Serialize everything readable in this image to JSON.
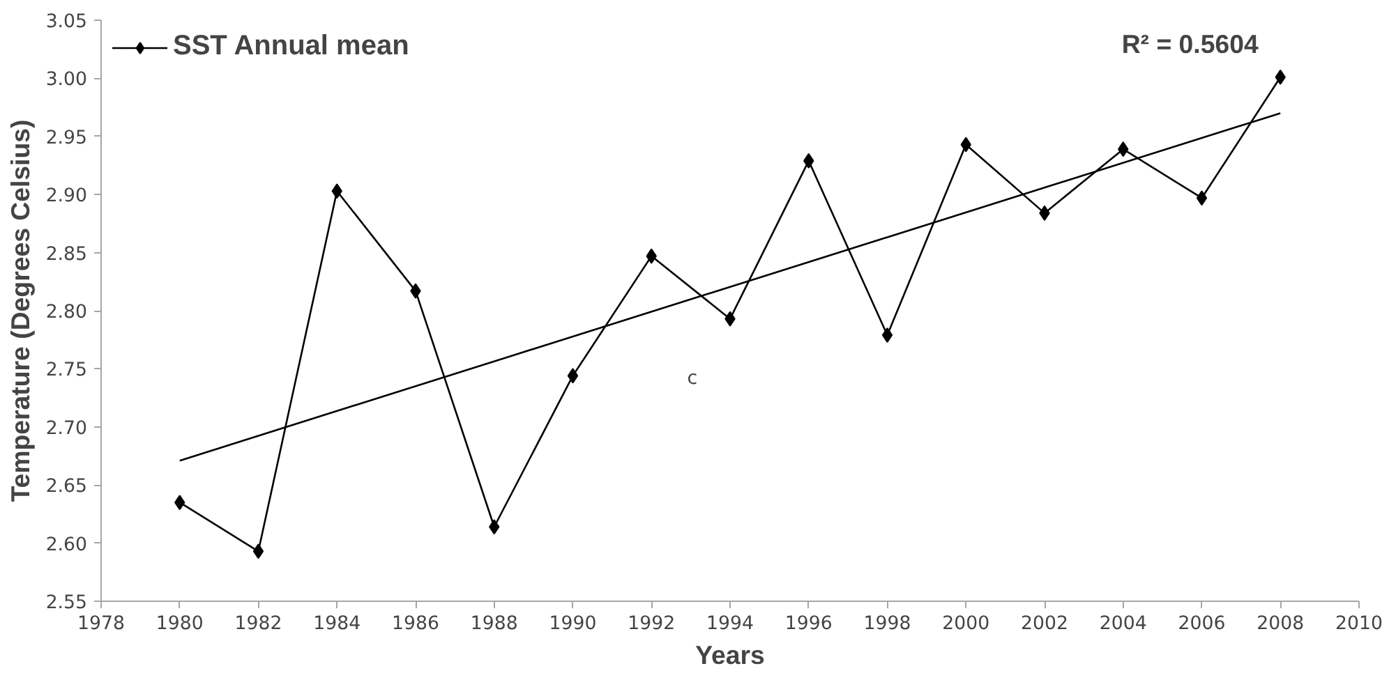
{
  "chart_data": {
    "type": "line",
    "xlabel": "Years",
    "ylabel": "Temperature (Degrees Celsius)",
    "x": [
      1980,
      1982,
      1984,
      1986,
      1988,
      1990,
      1992,
      1994,
      1996,
      1998,
      2000,
      2002,
      2004,
      2006,
      2008
    ],
    "series": [
      {
        "name": "SST Annual mean",
        "color": "#000000",
        "marker": "diamond",
        "values": [
          2.635,
          2.593,
          2.903,
          2.817,
          2.614,
          2.744,
          2.847,
          2.793,
          2.929,
          2.779,
          2.943,
          2.884,
          2.939,
          2.897,
          3.001
        ]
      },
      {
        "type": "line",
        "color": "#000000",
        "marker": "none",
        "x": [
          1980,
          2008
        ],
        "values": [
          2.671,
          2.97
        ]
      }
    ],
    "xlim": [
      1978,
      2010
    ],
    "xticks": [
      1978,
      1980,
      1982,
      1984,
      1986,
      1988,
      1990,
      1992,
      1994,
      1996,
      1998,
      2000,
      2002,
      2004,
      2006,
      2008,
      2010
    ],
    "ylim": [
      2.55,
      3.05
    ],
    "yticks": [
      {
        "value": 2.55,
        "label": "2.55"
      },
      {
        "value": 2.6,
        "label": "2.60"
      },
      {
        "value": 2.65,
        "label": "2.65"
      },
      {
        "value": 2.7,
        "label": "2.70"
      },
      {
        "value": 2.75,
        "label": "2.75"
      },
      {
        "value": 2.8,
        "label": "2.80"
      },
      {
        "value": 2.85,
        "label": "2.85"
      },
      {
        "value": 2.9,
        "label": "2.90"
      },
      {
        "value": 2.95,
        "label": "2.95"
      },
      {
        "value": 3.0,
        "label": "3.00"
      },
      {
        "value": 3.05,
        "label": "3.05"
      }
    ],
    "annotations": [
      "R² = 0.5604",
      "c"
    ],
    "grid": false,
    "legend": "top left",
    "line_style": "solid"
  }
}
